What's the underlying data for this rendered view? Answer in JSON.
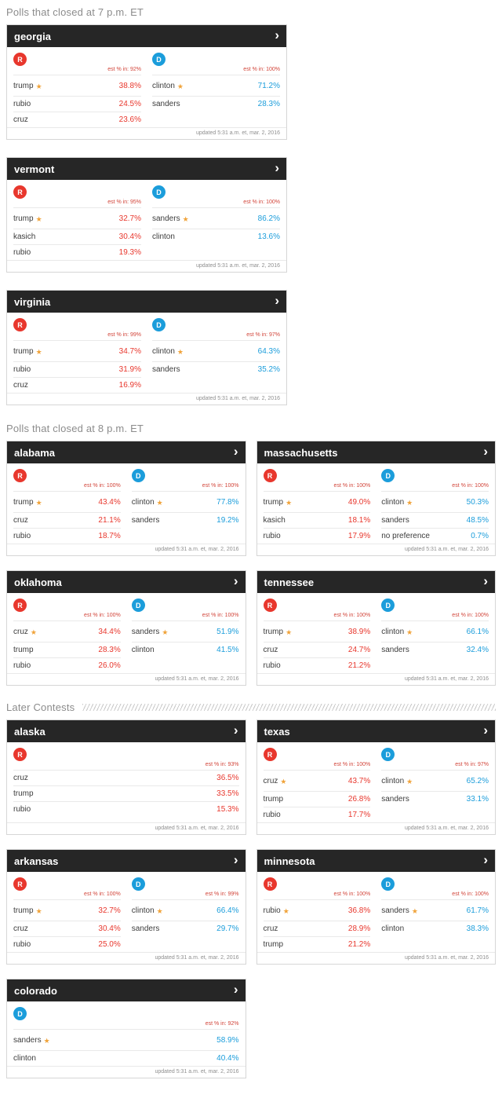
{
  "colors": {
    "rep": "#e8372d",
    "dem": "#1b9ddb",
    "star": "#f0a33a",
    "header_bg": "#262626",
    "est": "#d2453a"
  },
  "footer": {
    "updated": "updated 5:31 a.m. et, mar. 2, 2016"
  },
  "sections": [
    {
      "title": "Polls that closed at 7 p.m. ET",
      "divider": false,
      "layout": "single",
      "cards": [
        {
          "state": "georgia",
          "columns": [
            {
              "party": "R",
              "est": "est % in: 92%",
              "rows": [
                {
                  "name": "trump",
                  "winner": true,
                  "pct": "38.8%"
                },
                {
                  "name": "rubio",
                  "winner": false,
                  "pct": "24.5%"
                },
                {
                  "name": "cruz",
                  "winner": false,
                  "pct": "23.6%"
                }
              ]
            },
            {
              "party": "D",
              "est": "est % in: 100%",
              "rows": [
                {
                  "name": "clinton",
                  "winner": true,
                  "pct": "71.2%"
                },
                {
                  "name": "sanders",
                  "winner": false,
                  "pct": "28.3%"
                }
              ]
            }
          ]
        },
        {
          "state": "vermont",
          "columns": [
            {
              "party": "R",
              "est": "est % in: 95%",
              "rows": [
                {
                  "name": "trump",
                  "winner": true,
                  "pct": "32.7%"
                },
                {
                  "name": "kasich",
                  "winner": false,
                  "pct": "30.4%"
                },
                {
                  "name": "rubio",
                  "winner": false,
                  "pct": "19.3%"
                }
              ]
            },
            {
              "party": "D",
              "est": "est % in: 100%",
              "rows": [
                {
                  "name": "sanders",
                  "winner": true,
                  "pct": "86.2%"
                },
                {
                  "name": "clinton",
                  "winner": false,
                  "pct": "13.6%"
                }
              ]
            }
          ]
        },
        {
          "state": "virginia",
          "columns": [
            {
              "party": "R",
              "est": "est % in: 99%",
              "rows": [
                {
                  "name": "trump",
                  "winner": true,
                  "pct": "34.7%"
                },
                {
                  "name": "rubio",
                  "winner": false,
                  "pct": "31.9%"
                },
                {
                  "name": "cruz",
                  "winner": false,
                  "pct": "16.9%"
                }
              ]
            },
            {
              "party": "D",
              "est": "est % in: 97%",
              "rows": [
                {
                  "name": "clinton",
                  "winner": true,
                  "pct": "64.3%"
                },
                {
                  "name": "sanders",
                  "winner": false,
                  "pct": "35.2%"
                }
              ]
            }
          ]
        }
      ]
    },
    {
      "title": "Polls that closed at 8 p.m. ET",
      "divider": false,
      "layout": "double",
      "cards": [
        {
          "state": "alabama",
          "columns": [
            {
              "party": "R",
              "est": "est % in: 100%",
              "rows": [
                {
                  "name": "trump",
                  "winner": true,
                  "pct": "43.4%"
                },
                {
                  "name": "cruz",
                  "winner": false,
                  "pct": "21.1%"
                },
                {
                  "name": "rubio",
                  "winner": false,
                  "pct": "18.7%"
                }
              ]
            },
            {
              "party": "D",
              "est": "est % in: 100%",
              "rows": [
                {
                  "name": "clinton",
                  "winner": true,
                  "pct": "77.8%"
                },
                {
                  "name": "sanders",
                  "winner": false,
                  "pct": "19.2%"
                }
              ]
            }
          ]
        },
        {
          "state": "massachusetts",
          "columns": [
            {
              "party": "R",
              "est": "est % in: 100%",
              "rows": [
                {
                  "name": "trump",
                  "winner": true,
                  "pct": "49.0%"
                },
                {
                  "name": "kasich",
                  "winner": false,
                  "pct": "18.1%"
                },
                {
                  "name": "rubio",
                  "winner": false,
                  "pct": "17.9%"
                }
              ]
            },
            {
              "party": "D",
              "est": "est % in: 100%",
              "rows": [
                {
                  "name": "clinton",
                  "winner": true,
                  "pct": "50.3%"
                },
                {
                  "name": "sanders",
                  "winner": false,
                  "pct": "48.5%"
                },
                {
                  "name": "no preference",
                  "winner": false,
                  "pct": "0.7%"
                }
              ]
            }
          ]
        },
        {
          "state": "oklahoma",
          "columns": [
            {
              "party": "R",
              "est": "est % in: 100%",
              "rows": [
                {
                  "name": "cruz",
                  "winner": true,
                  "pct": "34.4%"
                },
                {
                  "name": "trump",
                  "winner": false,
                  "pct": "28.3%"
                },
                {
                  "name": "rubio",
                  "winner": false,
                  "pct": "26.0%"
                }
              ]
            },
            {
              "party": "D",
              "est": "est % in: 100%",
              "rows": [
                {
                  "name": "sanders",
                  "winner": true,
                  "pct": "51.9%"
                },
                {
                  "name": "clinton",
                  "winner": false,
                  "pct": "41.5%"
                }
              ]
            }
          ]
        },
        {
          "state": "tennessee",
          "columns": [
            {
              "party": "R",
              "est": "est % in: 100%",
              "rows": [
                {
                  "name": "trump",
                  "winner": true,
                  "pct": "38.9%"
                },
                {
                  "name": "cruz",
                  "winner": false,
                  "pct": "24.7%"
                },
                {
                  "name": "rubio",
                  "winner": false,
                  "pct": "21.2%"
                }
              ]
            },
            {
              "party": "D",
              "est": "est % in: 100%",
              "rows": [
                {
                  "name": "clinton",
                  "winner": true,
                  "pct": "66.1%"
                },
                {
                  "name": "sanders",
                  "winner": false,
                  "pct": "32.4%"
                }
              ]
            }
          ]
        }
      ]
    },
    {
      "title": "Later Contests",
      "divider": true,
      "layout": "double",
      "cards": [
        {
          "state": "alaska",
          "columns": [
            {
              "party": "R",
              "est": "est % in: 93%",
              "rows": [
                {
                  "name": "cruz",
                  "winner": false,
                  "pct": "36.5%"
                },
                {
                  "name": "trump",
                  "winner": false,
                  "pct": "33.5%"
                },
                {
                  "name": "rubio",
                  "winner": false,
                  "pct": "15.3%"
                }
              ]
            }
          ]
        },
        {
          "state": "texas",
          "columns": [
            {
              "party": "R",
              "est": "est % in: 100%",
              "rows": [
                {
                  "name": "cruz",
                  "winner": true,
                  "pct": "43.7%"
                },
                {
                  "name": "trump",
                  "winner": false,
                  "pct": "26.8%"
                },
                {
                  "name": "rubio",
                  "winner": false,
                  "pct": "17.7%"
                }
              ]
            },
            {
              "party": "D",
              "est": "est % in: 97%",
              "rows": [
                {
                  "name": "clinton",
                  "winner": true,
                  "pct": "65.2%"
                },
                {
                  "name": "sanders",
                  "winner": false,
                  "pct": "33.1%"
                }
              ]
            }
          ]
        },
        {
          "state": "arkansas",
          "columns": [
            {
              "party": "R",
              "est": "est % in: 100%",
              "rows": [
                {
                  "name": "trump",
                  "winner": true,
                  "pct": "32.7%"
                },
                {
                  "name": "cruz",
                  "winner": false,
                  "pct": "30.4%"
                },
                {
                  "name": "rubio",
                  "winner": false,
                  "pct": "25.0%"
                }
              ]
            },
            {
              "party": "D",
              "est": "est % in: 99%",
              "rows": [
                {
                  "name": "clinton",
                  "winner": true,
                  "pct": "66.4%"
                },
                {
                  "name": "sanders",
                  "winner": false,
                  "pct": "29.7%"
                }
              ]
            }
          ]
        },
        {
          "state": "minnesota",
          "columns": [
            {
              "party": "R",
              "est": "est % in: 100%",
              "rows": [
                {
                  "name": "rubio",
                  "winner": true,
                  "pct": "36.8%"
                },
                {
                  "name": "cruz",
                  "winner": false,
                  "pct": "28.9%"
                },
                {
                  "name": "trump",
                  "winner": false,
                  "pct": "21.2%"
                }
              ]
            },
            {
              "party": "D",
              "est": "est % in: 100%",
              "rows": [
                {
                  "name": "sanders",
                  "winner": true,
                  "pct": "61.7%"
                },
                {
                  "name": "clinton",
                  "winner": false,
                  "pct": "38.3%"
                }
              ]
            }
          ]
        },
        {
          "state": "colorado",
          "columns": [
            {
              "party": "D",
              "est": "est % in: 92%",
              "rows": [
                {
                  "name": "sanders",
                  "winner": true,
                  "pct": "58.9%"
                },
                {
                  "name": "clinton",
                  "winner": false,
                  "pct": "40.4%"
                }
              ]
            }
          ]
        }
      ]
    }
  ]
}
